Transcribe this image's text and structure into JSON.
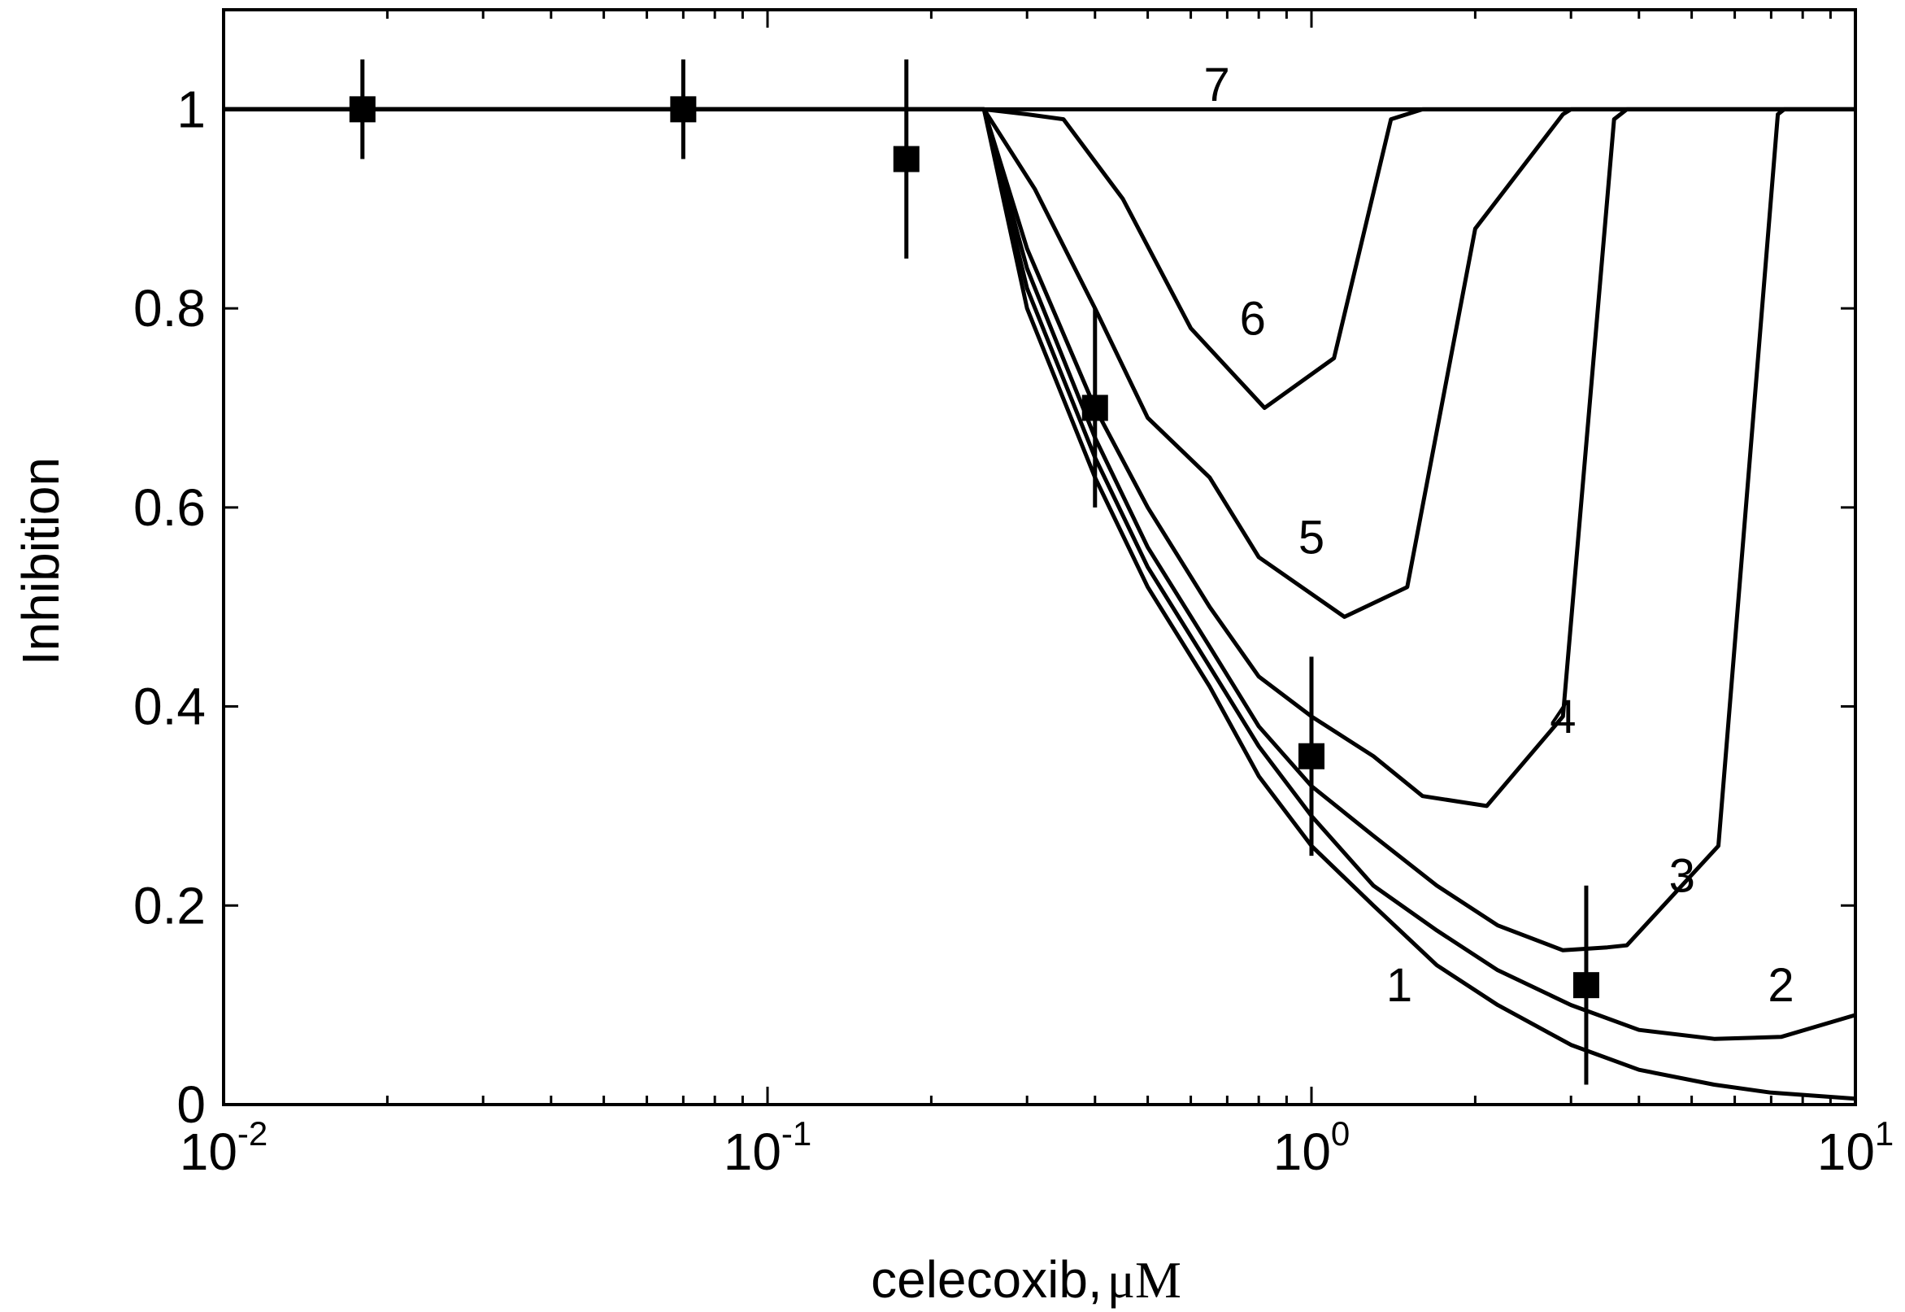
{
  "chart_data": {
    "type": "line",
    "xlabel": "celecoxib,",
    "xlabel_unit": "μM",
    "ylabel": "Inhibition",
    "xscale": "log",
    "xlim": [
      0.01,
      10
    ],
    "ylim": [
      0,
      1.1
    ],
    "grid": false,
    "x_ticks": [
      {
        "value": 0.01,
        "base": "10",
        "exp": "-2"
      },
      {
        "value": 0.1,
        "base": "10",
        "exp": "-1"
      },
      {
        "value": 1,
        "base": "10",
        "exp": "0"
      },
      {
        "value": 10,
        "base": "10",
        "exp": "1"
      }
    ],
    "y_ticks": [
      {
        "value": 0,
        "label": "0"
      },
      {
        "value": 0.2,
        "label": "0.2"
      },
      {
        "value": 0.4,
        "label": "0.4"
      },
      {
        "value": 0.6,
        "label": "0.6"
      },
      {
        "value": 0.8,
        "label": "0.8"
      },
      {
        "value": 1.0,
        "label": "1"
      }
    ],
    "series": [
      {
        "label": "1",
        "label_at": [
          1.45,
          0.12
        ],
        "points": [
          [
            0.01,
            1
          ],
          [
            0.25,
            1
          ],
          [
            0.3,
            0.8
          ],
          [
            0.4,
            0.63
          ],
          [
            0.5,
            0.52
          ],
          [
            0.65,
            0.42
          ],
          [
            0.8,
            0.33
          ],
          [
            1,
            0.26
          ],
          [
            1.3,
            0.2
          ],
          [
            1.7,
            0.14
          ],
          [
            2.2,
            0.1
          ],
          [
            3,
            0.06
          ],
          [
            4,
            0.035
          ],
          [
            5.5,
            0.02
          ],
          [
            7,
            0.012
          ],
          [
            10,
            0.006
          ]
        ]
      },
      {
        "label": "2",
        "label_at": [
          7.3,
          0.12
        ],
        "points": [
          [
            0.01,
            1
          ],
          [
            0.25,
            1
          ],
          [
            0.3,
            0.82
          ],
          [
            0.4,
            0.65
          ],
          [
            0.5,
            0.54
          ],
          [
            0.65,
            0.44
          ],
          [
            0.8,
            0.36
          ],
          [
            1,
            0.29
          ],
          [
            1.3,
            0.22
          ],
          [
            1.7,
            0.175
          ],
          [
            2.2,
            0.135
          ],
          [
            3,
            0.1
          ],
          [
            4,
            0.075
          ],
          [
            5.5,
            0.066
          ],
          [
            7.3,
            0.068
          ],
          [
            10,
            0.09
          ]
        ]
      },
      {
        "label": "3",
        "label_at": [
          4.8,
          0.23
        ],
        "points": [
          [
            0.01,
            1
          ],
          [
            0.25,
            1
          ],
          [
            0.3,
            0.84
          ],
          [
            0.4,
            0.67
          ],
          [
            0.5,
            0.56
          ],
          [
            0.65,
            0.46
          ],
          [
            0.8,
            0.38
          ],
          [
            1,
            0.32
          ],
          [
            1.3,
            0.27
          ],
          [
            1.7,
            0.22
          ],
          [
            2.2,
            0.18
          ],
          [
            2.9,
            0.155
          ],
          [
            3.5,
            0.158
          ],
          [
            3.8,
            0.16
          ],
          [
            5.6,
            0.26
          ],
          [
            7.2,
            0.995
          ],
          [
            7.4,
            1
          ],
          [
            10,
            1
          ]
        ]
      },
      {
        "label": "4",
        "label_at": [
          2.9,
          0.39
        ],
        "points": [
          [
            0.01,
            1
          ],
          [
            0.25,
            1
          ],
          [
            0.3,
            0.86
          ],
          [
            0.4,
            0.7
          ],
          [
            0.5,
            0.6
          ],
          [
            0.65,
            0.5
          ],
          [
            0.8,
            0.43
          ],
          [
            1,
            0.39
          ],
          [
            1.3,
            0.35
          ],
          [
            1.6,
            0.31
          ],
          [
            2.1,
            0.3
          ],
          [
            2.9,
            0.39
          ],
          [
            3.6,
            0.99
          ],
          [
            3.8,
            1
          ],
          [
            10,
            1
          ]
        ]
      },
      {
        "label": "5",
        "label_at": [
          1.0,
          0.57
        ],
        "points": [
          [
            0.01,
            1
          ],
          [
            0.25,
            1
          ],
          [
            0.31,
            0.92
          ],
          [
            0.4,
            0.8
          ],
          [
            0.5,
            0.69
          ],
          [
            0.65,
            0.63
          ],
          [
            0.8,
            0.55
          ],
          [
            1.15,
            0.49
          ],
          [
            1.5,
            0.52
          ],
          [
            2.0,
            0.88
          ],
          [
            2.9,
            0.995
          ],
          [
            3.0,
            1
          ],
          [
            10,
            1
          ]
        ]
      },
      {
        "label": "6",
        "label_at": [
          0.78,
          0.79
        ],
        "points": [
          [
            0.01,
            1
          ],
          [
            0.25,
            1
          ],
          [
            0.3,
            0.995
          ],
          [
            0.35,
            0.99
          ],
          [
            0.45,
            0.91
          ],
          [
            0.6,
            0.78
          ],
          [
            0.82,
            0.7
          ],
          [
            1.1,
            0.75
          ],
          [
            1.4,
            0.99
          ],
          [
            1.6,
            1
          ],
          [
            10,
            1
          ]
        ]
      },
      {
        "label": "7",
        "label_at": [
          0.67,
          1.025
        ],
        "points": [
          [
            0.01,
            1
          ],
          [
            10,
            1
          ]
        ]
      }
    ],
    "experimental_data": [
      {
        "x": 0.018,
        "y": 1.0,
        "err": 0.05
      },
      {
        "x": 0.07,
        "y": 1.0,
        "err": 0.05
      },
      {
        "x": 0.18,
        "y": 0.95,
        "err": 0.1
      },
      {
        "x": 0.4,
        "y": 0.7,
        "err": 0.1
      },
      {
        "x": 1.0,
        "y": 0.35,
        "err": 0.1
      },
      {
        "x": 3.2,
        "y": 0.12,
        "err": 0.1
      }
    ]
  }
}
